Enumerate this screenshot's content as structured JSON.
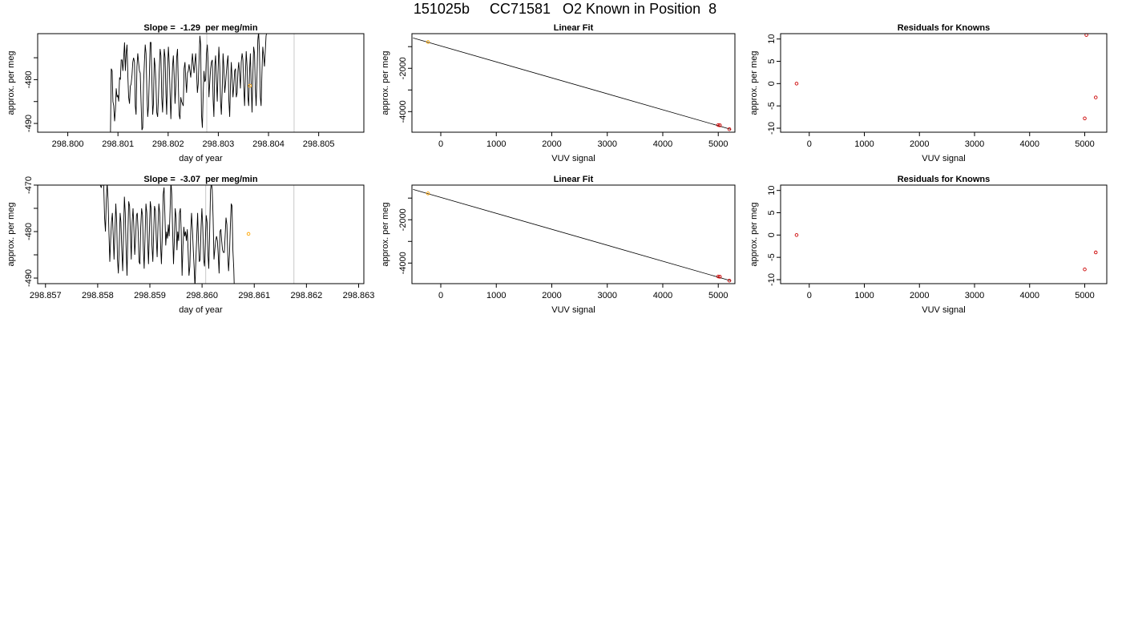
{
  "figure": {
    "title": "151025b     CC71581   O2 Known in Position  8"
  },
  "chart_data": [
    {
      "type": "line",
      "title": "Slope =  -1.29  per meg/min",
      "xlabel": "day of year",
      "ylabel": "approx. per meg",
      "xlim": [
        298.7994,
        298.8059
      ],
      "ylim": [
        -492.0,
        -469.5
      ],
      "x_ticks": [
        298.8,
        298.801,
        298.802,
        298.803,
        298.804,
        298.805
      ],
      "x_tick_labels": [
        "298.800",
        "298.801",
        "298.802",
        "298.803",
        "298.804",
        "298.805"
      ],
      "y_ticks": [
        -490,
        -485,
        -480,
        -475
      ],
      "y_tick_labels": [
        "-490",
        "",
        "-480",
        ""
      ],
      "vlines": [
        298.80277,
        298.80451
      ],
      "highlight_points": [
        {
          "x": 298.80363,
          "y": -481.4,
          "color": "#FFA500"
        }
      ],
      "series": [
        {
          "color": "#000000",
          "x_start": 298.80085,
          "x_step": 1.65e-05,
          "values": [
            -493.0,
            -477.5,
            -478.0,
            -485.0,
            -486.0,
            -489.5,
            -487.0,
            -482.0,
            -484.0,
            -483.5,
            -485.0,
            -479.5,
            -480.0,
            -475.5,
            -475.5,
            -478.0,
            -475.0,
            -471.5,
            -478.0,
            -474.0,
            -472.0,
            -479.0,
            -484.0,
            -485.5,
            -481.5,
            -481.0,
            -479.0,
            -476.0,
            -475.0,
            -476.0,
            -486.0,
            -488.0,
            -477.0,
            -474.0,
            -476.0,
            -478.0,
            -478.5,
            -485.0,
            -491.5,
            -491.0,
            -481.0,
            -476.0,
            -472.0,
            -474.0,
            -483.0,
            -488.5,
            -486.0,
            -479.0,
            -471.5,
            -471.5,
            -480.0,
            -488.0,
            -485.5,
            -475.0,
            -477.0,
            -481.0,
            -487.5,
            -488.5,
            -484.0,
            -478.0,
            -473.0,
            -474.5,
            -484.0,
            -487.5,
            -480.0,
            -473.0,
            -475.0,
            -483.0,
            -488.0,
            -477.5,
            -472.5,
            -476.0,
            -483.0,
            -489.0,
            -483.0,
            -477.0,
            -474.5,
            -479.0,
            -485.5,
            -481.5,
            -475.0,
            -473.0,
            -481.0,
            -488.0,
            -489.0,
            -484.0,
            -485.0,
            -485.5,
            -486.0,
            -477.5,
            -476.0,
            -480.0,
            -483.0,
            -478.5,
            -478.0,
            -476.5,
            -478.0,
            -479.5,
            -477.0,
            -474.0,
            -476.5,
            -478.5,
            -476.0,
            -474.0,
            -478.0,
            -483.0,
            -481.0,
            -476.0,
            -470.0,
            -472.0,
            -488.0,
            -491.0,
            -483.5,
            -478.0,
            -480.5,
            -480.0,
            -474.0,
            -472.0,
            -476.0,
            -484.0,
            -480.5,
            -477.5,
            -476.0,
            -475.5,
            -484.5,
            -488.5,
            -477.0,
            -474.5,
            -480.0,
            -485.0,
            -478.0,
            -472.5,
            -477.0,
            -485.0,
            -488.0,
            -482.0,
            -474.0,
            -477.0,
            -483.0,
            -481.0,
            -478.5,
            -476.0,
            -474.5,
            -484.5,
            -488.5,
            -481.0,
            -476.0,
            -480.0,
            -484.0,
            -481.5,
            -478.0,
            -477.5,
            -484.0,
            -483.0,
            -478.0,
            -476.0,
            -479.0,
            -482.0,
            -476.0,
            -474.0,
            -475.5,
            -481.5,
            -486.0,
            -479.0,
            -473.5,
            -477.0,
            -484.0,
            -486.0,
            -478.0,
            -474.0,
            -481.0,
            -487.5,
            -479.0,
            -472.5,
            -474.0,
            -482.0,
            -486.0,
            -479.0,
            -471.0,
            -469.0,
            -474.0,
            -484.0,
            -486.0,
            -478.0,
            -472.5,
            -474.5,
            -477.0,
            -473.5,
            -470.0,
            -469.0,
            -467.0,
            -463.0
          ]
        }
      ]
    },
    {
      "type": "scatter",
      "title": "Linear Fit",
      "xlabel": "VUV signal",
      "ylabel": "approx. per meg",
      "xlim": [
        -520,
        5300
      ],
      "ylim": [
        -4950,
        -400
      ],
      "x_ticks": [
        0,
        1000,
        2000,
        3000,
        4000,
        5000
      ],
      "x_tick_labels": [
        "0",
        "1000",
        "2000",
        "3000",
        "4000",
        "5000"
      ],
      "y_ticks": [
        -4000,
        -3000,
        -2000,
        -1000
      ],
      "y_tick_labels": [
        "-4000",
        "",
        "-2000",
        ""
      ],
      "fit_line": {
        "x": [
          -500,
          5230
        ],
        "y": [
          -600,
          -4820
        ]
      },
      "points": [
        {
          "x": -230,
          "y": -785,
          "color": "#FFA500"
        },
        {
          "x": 5000,
          "y": -4620,
          "color": "#CC0000"
        },
        {
          "x": 5030,
          "y": -4630,
          "color": "#CC0000"
        },
        {
          "x": 5200,
          "y": -4810,
          "color": "#CC0000"
        }
      ]
    },
    {
      "type": "scatter",
      "title": "Residuals for Knowns",
      "xlabel": "VUV signal",
      "ylabel": "approx. per meg",
      "xlim": [
        -520,
        5400
      ],
      "ylim": [
        -10.9,
        11.2
      ],
      "x_ticks": [
        0,
        1000,
        2000,
        3000,
        4000,
        5000
      ],
      "x_tick_labels": [
        "0",
        "1000",
        "2000",
        "3000",
        "4000",
        "5000"
      ],
      "y_ticks": [
        -10,
        -5,
        0,
        5,
        10
      ],
      "y_tick_labels": [
        "-10",
        "-5",
        "0",
        "5",
        "10"
      ],
      "points": [
        {
          "x": -230,
          "y": 0.0,
          "color": "#CC0000"
        },
        {
          "x": 5030,
          "y": 10.9,
          "color": "#CC0000"
        },
        {
          "x": 5200,
          "y": -3.1,
          "color": "#CC0000"
        },
        {
          "x": 5000,
          "y": -7.8,
          "color": "#CC0000"
        }
      ]
    },
    {
      "type": "line",
      "title": "Slope =  -3.07  per meg/min",
      "xlabel": "day of year",
      "ylabel": "approx. per meg",
      "xlim": [
        298.85685,
        298.8631
      ],
      "ylim": [
        -491.2,
        -470.0
      ],
      "x_ticks": [
        298.857,
        298.858,
        298.859,
        298.86,
        298.861,
        298.862,
        298.863
      ],
      "x_tick_labels": [
        "298.857",
        "298.858",
        "298.859",
        "298.860",
        "298.861",
        "298.862",
        "298.863"
      ],
      "y_ticks": [
        -490,
        -485,
        -480,
        -475,
        -470
      ],
      "y_tick_labels": [
        "-490",
        "",
        "-480",
        "",
        "-470"
      ],
      "vlines": [
        298.86007,
        298.86176
      ],
      "highlight_points": [
        {
          "x": 298.86089,
          "y": -480.5,
          "color": "#FFA500"
        }
      ],
      "series": [
        {
          "color": "#000000",
          "x_start": 298.85805,
          "x_step": 1.65e-05,
          "values": [
            -470.0,
            -470.5,
            -470.0,
            -466.0,
            -470.0,
            -477.0,
            -480.0,
            -473.0,
            -469.5,
            -473.0,
            -480.0,
            -486.5,
            -482.0,
            -478.0,
            -476.0,
            -481.0,
            -486.0,
            -480.0,
            -474.0,
            -478.0,
            -486.0,
            -489.0,
            -483.0,
            -476.0,
            -478.0,
            -484.0,
            -488.5,
            -480.0,
            -472.5,
            -476.0,
            -484.0,
            -489.5,
            -481.0,
            -473.5,
            -474.5,
            -481.0,
            -486.0,
            -478.0,
            -475.0,
            -479.0,
            -485.0,
            -481.5,
            -476.5,
            -476.0,
            -480.0,
            -486.5,
            -487.0,
            -479.0,
            -475.0,
            -476.5,
            -484.0,
            -488.0,
            -481.0,
            -474.0,
            -476.0,
            -482.0,
            -487.0,
            -480.0,
            -473.5,
            -475.0,
            -483.0,
            -486.5,
            -480.0,
            -474.5,
            -475.5,
            -481.5,
            -485.5,
            -479.0,
            -474.0,
            -476.0,
            -483.0,
            -487.0,
            -481.0,
            -472.0,
            -470.5,
            -476.0,
            -483.0,
            -480.0,
            -481.5,
            -478.5,
            -481.0,
            -475.5,
            -469.0,
            -472.0,
            -480.0,
            -487.0,
            -482.0,
            -475.0,
            -477.0,
            -484.0,
            -480.0,
            -482.0,
            -476.0,
            -475.0,
            -480.0,
            -489.5,
            -483.0,
            -479.0,
            -481.0,
            -480.0,
            -482.0,
            -479.5,
            -484.0,
            -489.5,
            -487.5,
            -480.0,
            -476.0,
            -479.5,
            -484.0,
            -488.0,
            -492.0,
            -486.0,
            -481.0,
            -476.0,
            -482.0,
            -486.5,
            -486.0,
            -479.0,
            -475.0,
            -479.0,
            -486.0,
            -487.5,
            -482.0,
            -476.5,
            -478.0,
            -485.0,
            -488.0,
            -480.0,
            -471.0,
            -469.5,
            -471.0,
            -477.0,
            -486.0,
            -484.0,
            -482.0,
            -481.0,
            -482.0,
            -485.0,
            -489.0,
            -480.0,
            -479.5,
            -482.0,
            -484.0,
            -484.5,
            -484.5,
            -481.0,
            -477.0,
            -478.5,
            -485.0,
            -488.5,
            -485.0,
            -479.0,
            -474.0,
            -474.5,
            -484.0,
            -488.0,
            -495.0
          ]
        }
      ]
    },
    {
      "type": "scatter",
      "title": "Linear Fit",
      "xlabel": "VUV signal",
      "ylabel": "approx. per meg",
      "xlim": [
        -520,
        5300
      ],
      "ylim": [
        -4950,
        -400
      ],
      "x_ticks": [
        0,
        1000,
        2000,
        3000,
        4000,
        5000
      ],
      "x_tick_labels": [
        "0",
        "1000",
        "2000",
        "3000",
        "4000",
        "5000"
      ],
      "y_ticks": [
        -4000,
        -3000,
        -2000,
        -1000
      ],
      "y_tick_labels": [
        "-4000",
        "",
        "-2000",
        ""
      ],
      "fit_line": {
        "x": [
          -500,
          5230
        ],
        "y": [
          -600,
          -4820
        ]
      },
      "points": [
        {
          "x": -230,
          "y": -785,
          "color": "#FFA500"
        },
        {
          "x": 5000,
          "y": -4620,
          "color": "#CC0000"
        },
        {
          "x": 5030,
          "y": -4630,
          "color": "#CC0000"
        },
        {
          "x": 5200,
          "y": -4810,
          "color": "#CC0000"
        }
      ]
    },
    {
      "type": "scatter",
      "title": "Residuals for Knowns",
      "xlabel": "VUV signal",
      "ylabel": "approx. per meg",
      "xlim": [
        -520,
        5400
      ],
      "ylim": [
        -10.9,
        11.2
      ],
      "x_ticks": [
        0,
        1000,
        2000,
        3000,
        4000,
        5000
      ],
      "x_tick_labels": [
        "0",
        "1000",
        "2000",
        "3000",
        "4000",
        "5000"
      ],
      "y_ticks": [
        -10,
        -5,
        0,
        5,
        10
      ],
      "y_tick_labels": [
        "-10",
        "-5",
        "0",
        "5",
        "10"
      ],
      "points": [
        {
          "x": -230,
          "y": 0.0,
          "color": "#CC0000"
        },
        {
          "x": 5200,
          "y": -3.9,
          "color": "#CC0000"
        },
        {
          "x": 5000,
          "y": -7.7,
          "color": "#CC0000"
        }
      ]
    }
  ]
}
